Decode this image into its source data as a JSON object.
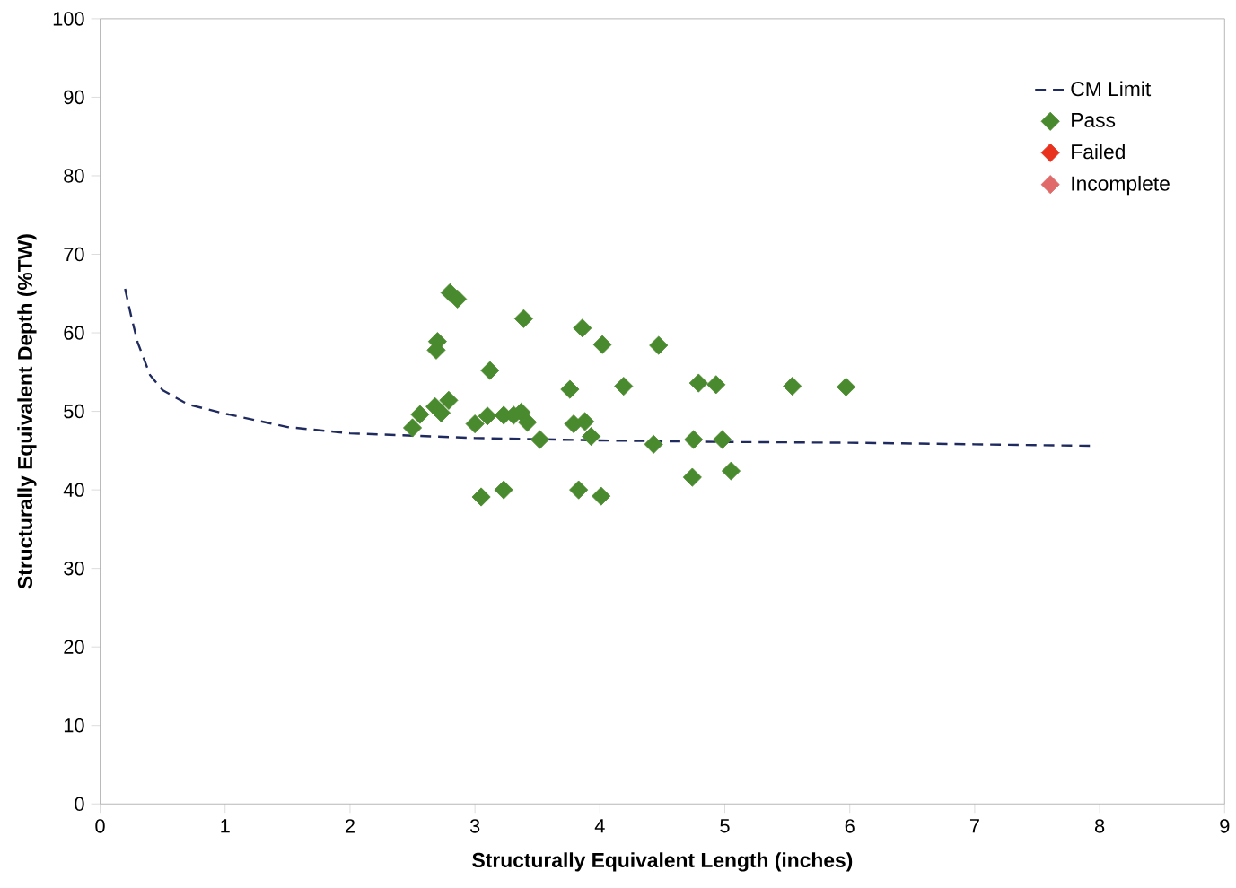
{
  "chart_data": {
    "type": "scatter",
    "xlabel": "Structurally Equivalent Length (inches)",
    "ylabel": "Structurally Equivalent Depth (%TW)",
    "xlim": [
      0,
      9
    ],
    "ylim": [
      0,
      100
    ],
    "xticks": [
      0,
      1,
      2,
      3,
      4,
      5,
      6,
      7,
      8,
      9
    ],
    "yticks": [
      0,
      10,
      20,
      30,
      40,
      50,
      60,
      70,
      80,
      90,
      100
    ],
    "grid": false,
    "legend": "top right",
    "marker": "diamond",
    "series": [
      {
        "name": "CM Limit",
        "type": "line",
        "line_style": "dashed",
        "marker": "none",
        "color": "#1f2a5e",
        "x": [
          0.2,
          0.25,
          0.3,
          0.4,
          0.5,
          0.7,
          1.0,
          1.5,
          2.0,
          3.0,
          4.0,
          5.0,
          6.0,
          7.0,
          7.95
        ],
        "values": [
          65.6,
          62.0,
          58.8,
          54.6,
          52.7,
          50.9,
          49.7,
          48.0,
          47.2,
          46.6,
          46.3,
          46.1,
          46.0,
          45.8,
          45.6
        ]
      },
      {
        "name": "Pass",
        "color": "#4a8a2e",
        "x": [
          2.5,
          2.56,
          2.68,
          2.73,
          2.7,
          2.69,
          2.8,
          2.86,
          2.79,
          3.0,
          3.1,
          3.12,
          3.05,
          3.23,
          3.23,
          3.31,
          3.37,
          3.39,
          3.42,
          3.52,
          3.76,
          3.79,
          3.88,
          3.86,
          3.83,
          3.93,
          4.02,
          4.01,
          4.19,
          4.43,
          4.47,
          4.74,
          4.75,
          4.79,
          4.93,
          4.98,
          5.05,
          5.54,
          5.97
        ],
        "values": [
          47.9,
          49.6,
          50.6,
          49.8,
          58.9,
          57.8,
          65.1,
          64.3,
          51.4,
          48.4,
          49.4,
          55.2,
          39.1,
          49.5,
          40.0,
          49.5,
          49.9,
          61.8,
          48.6,
          46.4,
          52.8,
          48.4,
          48.7,
          60.6,
          40.0,
          46.8,
          58.5,
          39.2,
          53.2,
          45.8,
          58.4,
          41.6,
          46.4,
          53.6,
          53.4,
          46.4,
          42.4,
          53.2,
          53.1
        ]
      },
      {
        "name": "Failed",
        "color": "#e8321e"
      },
      {
        "name": "Incomplete",
        "color": "#e06a6a"
      }
    ]
  }
}
